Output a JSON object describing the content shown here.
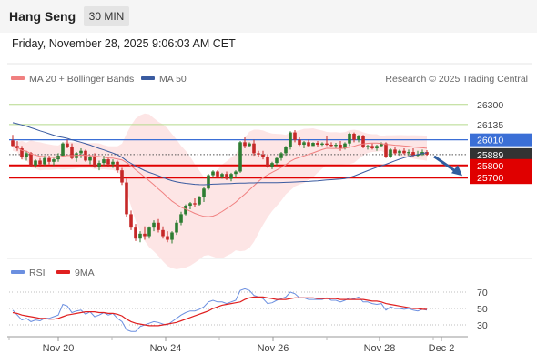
{
  "header": {
    "title": "Hang Seng",
    "timeframe": "30 MIN"
  },
  "datetime": "Friday, November 28, 2025 9:06:03 AM CET",
  "legend": {
    "ma20_label": "MA 20 + Bollinger Bands",
    "ma50_label": "MA 50",
    "rsi_label": "RSI",
    "rsi_ma_label": "9MA"
  },
  "copyright": "Research © 2025 Trading Central",
  "colors": {
    "candle_up": "#2e7d32",
    "candle_down": "#c62828",
    "bollinger_fill": "#fde0e0",
    "ma20": "#f08080",
    "ma50": "#3a5ba0",
    "resistance": "#b5d98c",
    "pivot": "#3b6fd6",
    "support": "#e00000",
    "current_price_bg": "#333333",
    "rsi": "#6b8fe0",
    "rsi_ma": "#e02020"
  },
  "chart_data": {
    "type": "candlestick",
    "x_axis": {
      "tick_labels": [
        "Nov 20",
        "Nov 24",
        "Nov 26",
        "Nov 28",
        "Dec 2"
      ]
    },
    "y_range": [
      25000,
      26400
    ],
    "levels": {
      "resistance": [
        26300,
        26135
      ],
      "pivot": 26010,
      "current": 25889,
      "support": [
        25800,
        25700
      ],
      "labels": [
        "26300",
        "26135",
        "26010",
        "25889",
        "25800",
        "25700"
      ]
    },
    "forecast_arrow": {
      "direction": "down",
      "target": 25700
    },
    "candles": [
      [
        26005,
        26050,
        25950,
        25960
      ],
      [
        25960,
        26000,
        25920,
        25940
      ],
      [
        25940,
        25960,
        25850,
        25870
      ],
      [
        25870,
        25920,
        25840,
        25900
      ],
      [
        25900,
        25910,
        25790,
        25800
      ],
      [
        25800,
        25850,
        25780,
        25840
      ],
      [
        25840,
        25860,
        25790,
        25810
      ],
      [
        25810,
        25880,
        25800,
        25860
      ],
      [
        25860,
        25880,
        25810,
        25830
      ],
      [
        25830,
        25860,
        25800,
        25850
      ],
      [
        25850,
        25900,
        25830,
        25880
      ],
      [
        25880,
        25990,
        25870,
        25980
      ],
      [
        25980,
        26010,
        25940,
        25950
      ],
      [
        25950,
        25980,
        25850,
        25860
      ],
      [
        25860,
        25910,
        25830,
        25900
      ],
      [
        25900,
        25940,
        25860,
        25920
      ],
      [
        25920,
        25930,
        25830,
        25840
      ],
      [
        25840,
        25880,
        25810,
        25870
      ],
      [
        25870,
        25900,
        25780,
        25790
      ],
      [
        25790,
        25840,
        25760,
        25820
      ],
      [
        25820,
        25880,
        25800,
        25850
      ],
      [
        25850,
        25870,
        25790,
        25810
      ],
      [
        25810,
        25850,
        25780,
        25830
      ],
      [
        25830,
        25840,
        25740,
        25760
      ],
      [
        25760,
        25780,
        25640,
        25660
      ],
      [
        25660,
        25690,
        25380,
        25400
      ],
      [
        25400,
        25430,
        25270,
        25290
      ],
      [
        25290,
        25320,
        25180,
        25200
      ],
      [
        25200,
        25260,
        25170,
        25240
      ],
      [
        25240,
        25300,
        25190,
        25220
      ],
      [
        25220,
        25300,
        25200,
        25290
      ],
      [
        25290,
        25350,
        25260,
        25330
      ],
      [
        25330,
        25360,
        25250,
        25270
      ],
      [
        25270,
        25300,
        25200,
        25220
      ],
      [
        25220,
        25260,
        25170,
        25190
      ],
      [
        25190,
        25260,
        25160,
        25250
      ],
      [
        25250,
        25350,
        25230,
        25330
      ],
      [
        25330,
        25420,
        25310,
        25400
      ],
      [
        25400,
        25480,
        25390,
        25470
      ],
      [
        25470,
        25500,
        25440,
        25490
      ],
      [
        25490,
        25530,
        25460,
        25480
      ],
      [
        25480,
        25550,
        25470,
        25540
      ],
      [
        25540,
        25620,
        25500,
        25610
      ],
      [
        25610,
        25730,
        25600,
        25720
      ],
      [
        25720,
        25760,
        25700,
        25750
      ],
      [
        25750,
        25760,
        25700,
        25710
      ],
      [
        25710,
        25740,
        25690,
        25730
      ],
      [
        25730,
        25750,
        25680,
        25690
      ],
      [
        25690,
        25740,
        25670,
        25730
      ],
      [
        25730,
        25760,
        25700,
        25750
      ],
      [
        25750,
        26000,
        25740,
        25990
      ],
      [
        25990,
        26030,
        25940,
        25960
      ],
      [
        25960,
        25990,
        25950,
        25980
      ],
      [
        25980,
        26010,
        25880,
        25900
      ],
      [
        25900,
        25920,
        25870,
        25890
      ],
      [
        25890,
        25920,
        25850,
        25870
      ],
      [
        25870,
        25890,
        25780,
        25790
      ],
      [
        25790,
        25830,
        25770,
        25820
      ],
      [
        25820,
        25870,
        25800,
        25860
      ],
      [
        25860,
        25910,
        25840,
        25900
      ],
      [
        25900,
        25960,
        25880,
        25950
      ],
      [
        25950,
        26080,
        25930,
        26070
      ],
      [
        26070,
        26090,
        25990,
        26010
      ],
      [
        26010,
        26030,
        25960,
        25970
      ],
      [
        25970,
        26000,
        25940,
        25990
      ],
      [
        25990,
        26010,
        25950,
        25960
      ],
      [
        25960,
        25990,
        25960,
        25985
      ],
      [
        25985,
        26000,
        25950,
        25970
      ],
      [
        25970,
        25990,
        25960,
        25980
      ],
      [
        25980,
        26040,
        25960,
        25970
      ],
      [
        25970,
        25990,
        25950,
        25960
      ],
      [
        25960,
        25985,
        25940,
        25970
      ],
      [
        25970,
        26000,
        25920,
        25940
      ],
      [
        25940,
        25990,
        25930,
        25980
      ],
      [
        25980,
        26070,
        25960,
        26060
      ],
      [
        26060,
        26070,
        25990,
        26010
      ],
      [
        26010,
        26050,
        25990,
        26040
      ],
      [
        26040,
        26050,
        25940,
        25950
      ],
      [
        25950,
        25970,
        25930,
        25960
      ],
      [
        25960,
        25980,
        25930,
        25940
      ],
      [
        25940,
        25970,
        25920,
        25960
      ],
      [
        25960,
        25990,
        25950,
        25980
      ],
      [
        25980,
        25990,
        25860,
        25870
      ],
      [
        25870,
        25940,
        25860,
        25930
      ],
      [
        25930,
        25950,
        25890,
        25900
      ],
      [
        25900,
        25930,
        25880,
        25920
      ],
      [
        25920,
        25940,
        25890,
        25900
      ],
      [
        25900,
        25930,
        25880,
        25910
      ],
      [
        25910,
        25940,
        25870,
        25880
      ],
      [
        25880,
        25920,
        25870,
        25890
      ],
      [
        25890,
        25930,
        25880,
        25910
      ],
      [
        25910,
        25925,
        25880,
        25889
      ]
    ],
    "rsi": {
      "ylim": [
        0,
        100
      ],
      "tick_labels": [
        "70",
        "50",
        "30"
      ],
      "rsi": [
        48,
        42,
        36,
        38,
        34,
        36,
        35,
        38,
        38,
        40,
        42,
        55,
        53,
        45,
        47,
        48,
        43,
        46,
        40,
        42,
        45,
        42,
        44,
        38,
        34,
        24,
        22,
        22,
        28,
        30,
        32,
        34,
        33,
        31,
        30,
        34,
        38,
        42,
        45,
        47,
        47,
        49,
        52,
        58,
        60,
        58,
        58,
        56,
        58,
        60,
        72,
        74,
        72,
        66,
        64,
        62,
        56,
        57,
        60,
        62,
        64,
        70,
        68,
        63,
        63,
        61,
        61,
        61,
        61,
        63,
        60,
        60,
        58,
        60,
        63,
        62,
        64,
        58,
        58,
        56,
        55,
        56,
        48,
        52,
        50,
        50,
        49,
        50,
        48,
        47,
        49,
        48
      ],
      "ma": [
        45,
        44,
        42,
        41,
        40,
        39,
        38,
        38,
        37,
        37,
        38,
        40,
        42,
        43,
        44,
        45,
        46,
        46,
        46,
        45,
        45,
        44,
        44,
        43,
        41,
        37,
        34,
        32,
        31,
        30,
        29,
        29,
        29,
        30,
        31,
        32,
        33,
        35,
        37,
        39,
        41,
        43,
        45,
        47,
        50,
        52,
        54,
        55,
        56,
        57,
        58,
        61,
        63,
        64,
        64,
        64,
        63,
        62,
        61,
        61,
        61,
        62,
        63,
        63,
        63,
        63,
        63,
        62,
        62,
        62,
        62,
        62,
        61,
        61,
        61,
        61,
        61,
        61,
        60,
        59,
        59,
        58,
        56,
        55,
        54,
        53,
        52,
        51,
        50,
        50,
        49,
        49
      ]
    }
  }
}
